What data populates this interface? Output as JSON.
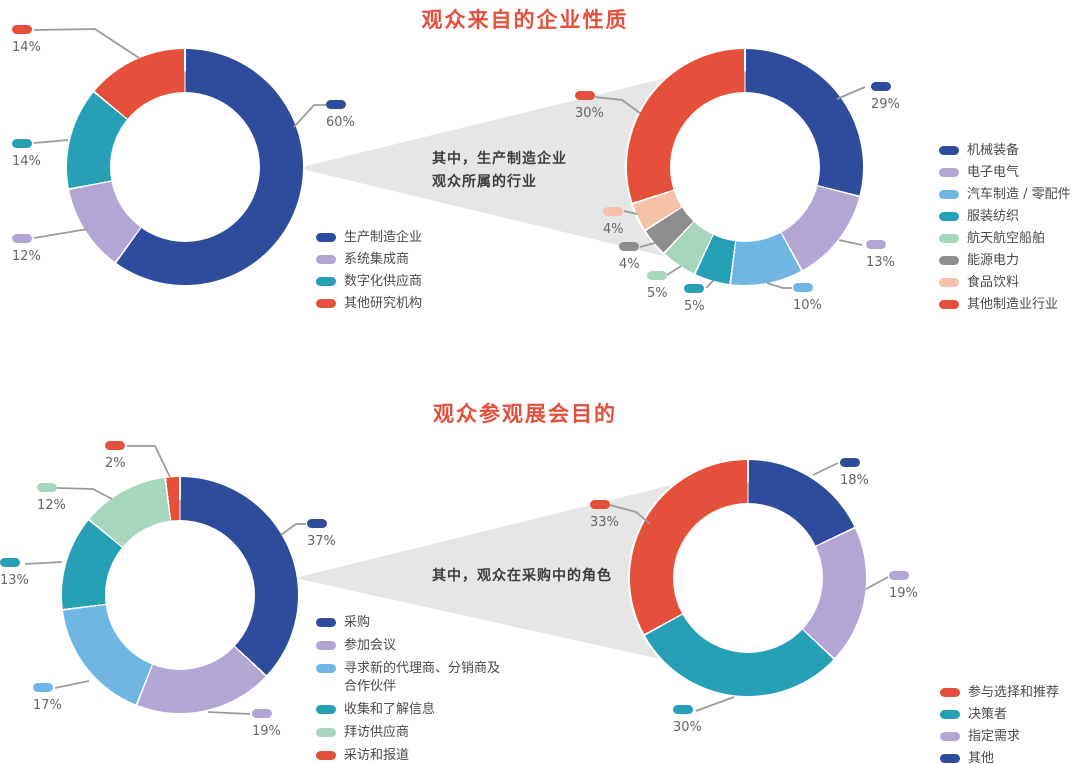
{
  "colors": {
    "dark_blue": "#2f4b9c",
    "purple": "#b3a6d5",
    "teal": "#25a0b4",
    "red": "#e5503c",
    "light_blue": "#6fb7e2",
    "light_green": "#a6d7bd",
    "gray": "#8e8e8e",
    "peach": "#f5c2a9",
    "title_text": "#e5503c",
    "percent_text": "#666666",
    "legend_text": "#4a4a4a",
    "beam_fill": "#e6e6e7",
    "beam_text": "#3d3d3d",
    "leader_line": "#9b9b9b",
    "background": "#ffffff"
  },
  "beams": {
    "beam1_line1": "其中，生产制造企业",
    "beam1_line2": "观众所属的行业",
    "beam2_line": "其中，观众在采购中的角色"
  },
  "chart_data": [
    {
      "type": "donut",
      "title": "观众来自的企业性质",
      "legend_position": "right-of-chart",
      "segments": [
        {
          "label": "生产制造企业",
          "value": 60,
          "pct": "60%",
          "color": "#2f4b9c"
        },
        {
          "label": "系统集成商",
          "value": 12,
          "pct": "12%",
          "color": "#b3a6d5"
        },
        {
          "label": "数字化供应商",
          "value": 14,
          "pct": "14%",
          "color": "#25a0b4"
        },
        {
          "label": "其他研究机构",
          "value": 14,
          "pct": "14%",
          "color": "#e5503c"
        }
      ]
    },
    {
      "type": "donut",
      "subtitle": "其中，生产制造企业观众所属的行业",
      "legend_position": "right-of-chart",
      "segments": [
        {
          "label": "机械装备",
          "value": 29,
          "pct": "29%",
          "color": "#2f4b9c"
        },
        {
          "label": "电子电气",
          "value": 13,
          "pct": "13%",
          "color": "#b3a6d5"
        },
        {
          "label": "汽车制造 / 零配件",
          "value": 10,
          "pct": "10%",
          "color": "#6fb7e2"
        },
        {
          "label": "服装纺织",
          "value": 5,
          "pct": "5%",
          "color": "#25a0b4"
        },
        {
          "label": "航天航空船舶",
          "value": 5,
          "pct": "5%",
          "color": "#a6d7bd"
        },
        {
          "label": "能源电力",
          "value": 4,
          "pct": "4%",
          "color": "#8e8e8e"
        },
        {
          "label": "食品饮料",
          "value": 4,
          "pct": "4%",
          "color": "#f5c2a9"
        },
        {
          "label": "其他制造业行业",
          "value": 30,
          "pct": "30%",
          "color": "#e5503c"
        }
      ]
    },
    {
      "type": "donut",
      "title": "观众参观展会目的",
      "legend_position": "right-of-chart",
      "segments": [
        {
          "label": "采购",
          "value": 37,
          "pct": "37%",
          "color": "#2f4b9c"
        },
        {
          "label": "参加会议",
          "value": 19,
          "pct": "19%",
          "color": "#b3a6d5"
        },
        {
          "label": "寻求新的代理商、分销商及合作伙伴",
          "value": 17,
          "pct": "17%",
          "color": "#6fb7e2"
        },
        {
          "label": "收集和了解信息",
          "value": 13,
          "pct": "13%",
          "color": "#25a0b4"
        },
        {
          "label": "拜访供应商",
          "value": 12,
          "pct": "12%",
          "color": "#a6d7bd"
        },
        {
          "label": "采访和报道",
          "value": 2,
          "pct": "2%",
          "color": "#e5503c"
        }
      ]
    },
    {
      "type": "donut",
      "subtitle": "其中，观众在采购中的角色",
      "legend_position": "right-of-chart",
      "legend_order": [
        3,
        2,
        1,
        0
      ],
      "segments": [
        {
          "label": "其他",
          "value": 18,
          "pct": "18%",
          "color": "#2f4b9c"
        },
        {
          "label": "指定需求",
          "value": 19,
          "pct": "19%",
          "color": "#b3a6d5"
        },
        {
          "label": "决策者",
          "value": 30,
          "pct": "30%",
          "color": "#25a0b4"
        },
        {
          "label": "参与选择和推荐",
          "value": 33,
          "pct": "33%",
          "color": "#e5503c"
        }
      ]
    }
  ]
}
